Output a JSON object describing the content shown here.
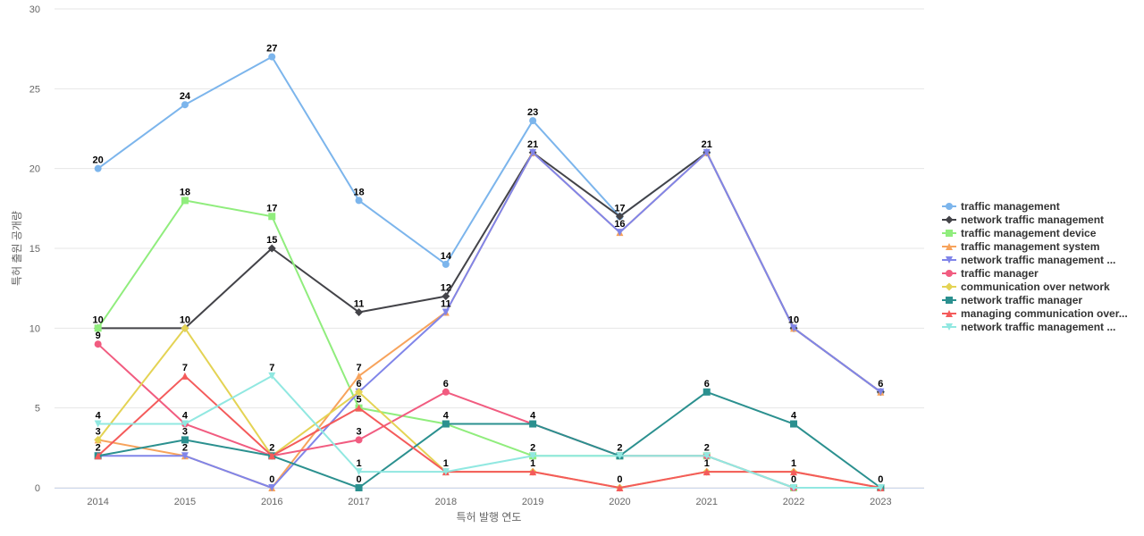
{
  "chart_data": {
    "type": "line",
    "title": "",
    "xlabel": "특허 발행 연도",
    "ylabel": "특허 출원 공개량",
    "ylim": [
      0,
      30
    ],
    "yticks": [
      "0",
      "5",
      "10",
      "15",
      "20",
      "25",
      "30"
    ],
    "grid": true,
    "legend_position": "right",
    "categories": [
      "2014",
      "2015",
      "2016",
      "2017",
      "2018",
      "2019",
      "2020",
      "2021",
      "2022",
      "2023"
    ],
    "series": [
      {
        "name": "traffic management",
        "color": "#7cb5ec",
        "marker": "circle",
        "values": [
          20,
          24,
          27,
          18,
          14,
          23,
          17,
          21,
          10,
          6
        ]
      },
      {
        "name": "network traffic management",
        "color": "#434348",
        "marker": "diamond",
        "values": [
          10,
          10,
          15,
          11,
          12,
          21,
          17,
          21,
          10,
          6
        ]
      },
      {
        "name": "traffic management device",
        "color": "#90ed7d",
        "marker": "square",
        "values": [
          10,
          18,
          17,
          5,
          4,
          2,
          2,
          2,
          0,
          0
        ]
      },
      {
        "name": "traffic management system",
        "color": "#f7a35c",
        "marker": "triangle",
        "values": [
          3,
          2,
          0,
          7,
          11,
          21,
          16,
          21,
          10,
          6
        ]
      },
      {
        "name": "network traffic management ...",
        "color": "#8085e9",
        "marker": "triangle-down",
        "values": [
          2,
          2,
          0,
          6,
          11,
          21,
          16,
          21,
          10,
          6
        ]
      },
      {
        "name": "traffic manager",
        "color": "#f15c80",
        "marker": "circle",
        "values": [
          9,
          4,
          2,
          3,
          6,
          4,
          2,
          2,
          0,
          0
        ]
      },
      {
        "name": "communication over network",
        "color": "#e4d354",
        "marker": "diamond",
        "values": [
          3,
          10,
          2,
          6,
          1,
          1,
          0,
          1,
          1,
          0
        ]
      },
      {
        "name": "network traffic manager",
        "color": "#2b908f",
        "marker": "square",
        "values": [
          2,
          3,
          2,
          0,
          4,
          4,
          2,
          6,
          4,
          0
        ]
      },
      {
        "name": "managing communication over...",
        "color": "#f45b5b",
        "marker": "triangle",
        "values": [
          2,
          7,
          2,
          5,
          1,
          1,
          0,
          1,
          1,
          0
        ]
      },
      {
        "name": "network traffic management ...",
        "color": "#91e8e1",
        "marker": "triangle-down",
        "values": [
          4,
          4,
          7,
          1,
          1,
          2,
          2,
          2,
          0,
          0
        ]
      }
    ],
    "data_labels": [
      {
        "x": "2014",
        "y": 20,
        "text": "20"
      },
      {
        "x": "2014",
        "y": 10,
        "text": "10"
      },
      {
        "x": "2014",
        "y": 9,
        "text": "9"
      },
      {
        "x": "2014",
        "y": 4,
        "text": "4"
      },
      {
        "x": "2014",
        "y": 3,
        "text": "3"
      },
      {
        "x": "2014",
        "y": 2,
        "text": "2"
      },
      {
        "x": "2015",
        "y": 24,
        "text": "24"
      },
      {
        "x": "2015",
        "y": 18,
        "text": "18"
      },
      {
        "x": "2015",
        "y": 10,
        "text": "10"
      },
      {
        "x": "2015",
        "y": 7,
        "text": "7"
      },
      {
        "x": "2015",
        "y": 4,
        "text": "4"
      },
      {
        "x": "2015",
        "y": 3,
        "text": "3"
      },
      {
        "x": "2015",
        "y": 2,
        "text": "2"
      },
      {
        "x": "2016",
        "y": 27,
        "text": "27"
      },
      {
        "x": "2016",
        "y": 17,
        "text": "17"
      },
      {
        "x": "2016",
        "y": 15,
        "text": "15"
      },
      {
        "x": "2016",
        "y": 7,
        "text": "7"
      },
      {
        "x": "2016",
        "y": 2,
        "text": "2"
      },
      {
        "x": "2016",
        "y": 0,
        "text": "0"
      },
      {
        "x": "2017",
        "y": 18,
        "text": "18"
      },
      {
        "x": "2017",
        "y": 11,
        "text": "11"
      },
      {
        "x": "2017",
        "y": 7,
        "text": "7"
      },
      {
        "x": "2017",
        "y": 6,
        "text": "6"
      },
      {
        "x": "2017",
        "y": 5,
        "text": "5"
      },
      {
        "x": "2017",
        "y": 3,
        "text": "3"
      },
      {
        "x": "2017",
        "y": 1,
        "text": "1"
      },
      {
        "x": "2017",
        "y": 0,
        "text": "0"
      },
      {
        "x": "2018",
        "y": 14,
        "text": "14"
      },
      {
        "x": "2018",
        "y": 12,
        "text": "12"
      },
      {
        "x": "2018",
        "y": 11,
        "text": "11"
      },
      {
        "x": "2018",
        "y": 6,
        "text": "6"
      },
      {
        "x": "2018",
        "y": 4,
        "text": "4"
      },
      {
        "x": "2018",
        "y": 1,
        "text": "1"
      },
      {
        "x": "2019",
        "y": 23,
        "text": "23"
      },
      {
        "x": "2019",
        "y": 21,
        "text": "21"
      },
      {
        "x": "2019",
        "y": 4,
        "text": "4"
      },
      {
        "x": "2019",
        "y": 2,
        "text": "2"
      },
      {
        "x": "2019",
        "y": 1,
        "text": "1"
      },
      {
        "x": "2020",
        "y": 17,
        "text": "17"
      },
      {
        "x": "2020",
        "y": 16,
        "text": "16"
      },
      {
        "x": "2020",
        "y": 2,
        "text": "2"
      },
      {
        "x": "2020",
        "y": 0,
        "text": "0"
      },
      {
        "x": "2021",
        "y": 21,
        "text": "21"
      },
      {
        "x": "2021",
        "y": 6,
        "text": "6"
      },
      {
        "x": "2021",
        "y": 2,
        "text": "2"
      },
      {
        "x": "2021",
        "y": 1,
        "text": "1"
      },
      {
        "x": "2022",
        "y": 10,
        "text": "10"
      },
      {
        "x": "2022",
        "y": 4,
        "text": "4"
      },
      {
        "x": "2022",
        "y": 1,
        "text": "1"
      },
      {
        "x": "2022",
        "y": 0,
        "text": "0"
      },
      {
        "x": "2023",
        "y": 6,
        "text": "6"
      },
      {
        "x": "2023",
        "y": 0,
        "text": "0"
      }
    ]
  }
}
